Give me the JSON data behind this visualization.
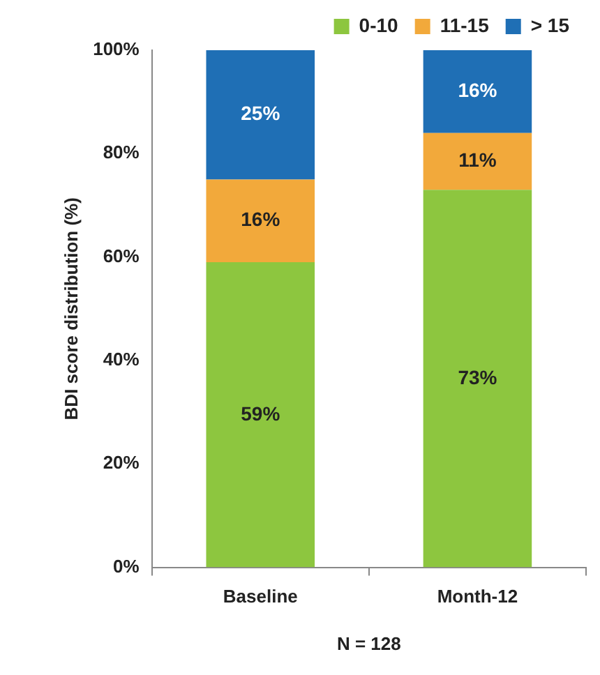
{
  "chart_data": {
    "type": "bar",
    "stacked": true,
    "categories": [
      "Baseline",
      "Month-12"
    ],
    "series": [
      {
        "name": "0-10",
        "color": "#8dc63f",
        "values": [
          59,
          73
        ],
        "value_labels": [
          "59%",
          "73%"
        ]
      },
      {
        "name": "11-15",
        "color": "#f2a93b",
        "values": [
          16,
          11
        ],
        "value_labels": [
          "16%",
          "11%"
        ]
      },
      {
        "name": "> 15",
        "color": "#1f6fb5",
        "values": [
          25,
          16
        ],
        "value_labels": [
          "25%",
          "16%"
        ]
      }
    ],
    "ylabel": "BDI score distribution (%)",
    "xlabel": "N = 128",
    "ylim": [
      0,
      100
    ],
    "yticks": [
      {
        "value": 0,
        "label": "0%"
      },
      {
        "value": 20,
        "label": "20%"
      },
      {
        "value": 40,
        "label": "40%"
      },
      {
        "value": 60,
        "label": "60%"
      },
      {
        "value": 80,
        "label": "80%"
      },
      {
        "value": 100,
        "label": "100%"
      }
    ],
    "grid": false,
    "legend": "top right"
  }
}
